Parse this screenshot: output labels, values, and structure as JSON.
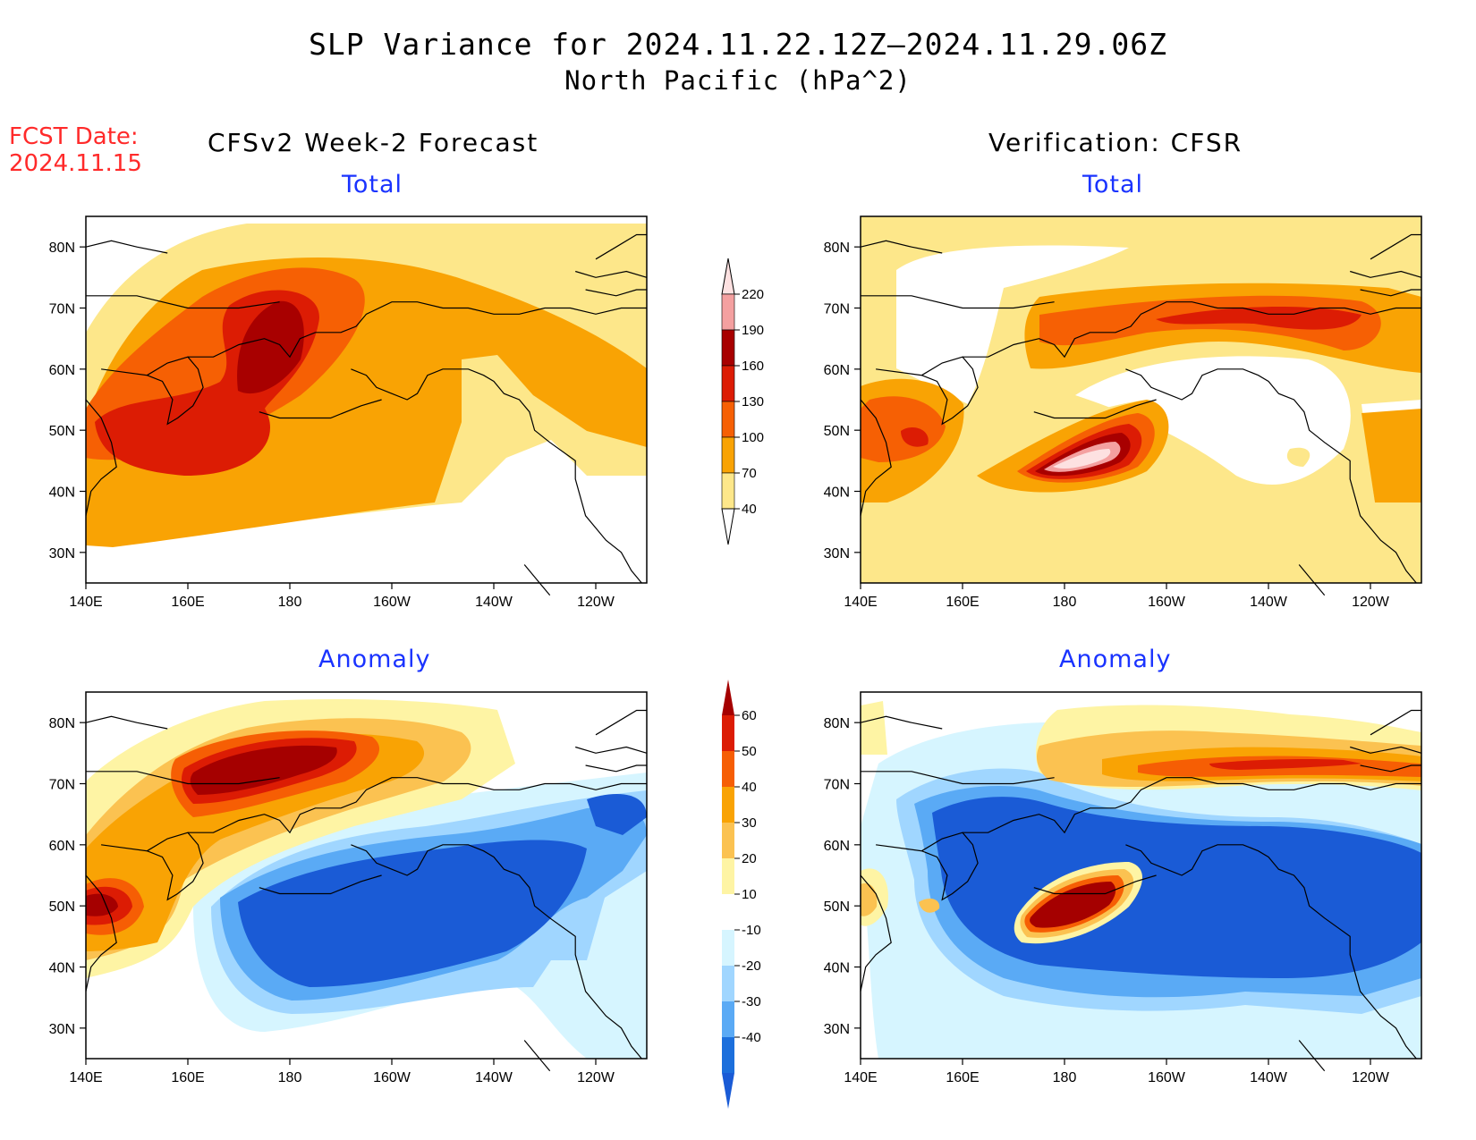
{
  "title": "SLP Variance for 2024.11.22.12Z—2024.11.29.06Z",
  "subtitle": "North Pacific (hPa^2)",
  "fcst_label": "FCST Date:",
  "fcst_date": "2024.11.15",
  "left_header": "CFSv2 Week-2 Forecast",
  "right_header": "Verification: CFSR",
  "panels": {
    "forecast_total": {
      "label": "Total"
    },
    "verification_total": {
      "label": "Total"
    },
    "forecast_anomaly": {
      "label": "Anomaly"
    },
    "verification_anomaly": {
      "label": "Anomaly"
    }
  },
  "axes": {
    "lon_ticks": [
      "140E",
      "160E",
      "180",
      "160W",
      "140W",
      "120W"
    ],
    "lat_ticks": [
      "80N",
      "70N",
      "60N",
      "50N",
      "40N",
      "30N"
    ],
    "lon_range": [
      140,
      250
    ],
    "lat_range": [
      25,
      85
    ]
  },
  "colorbars": {
    "total": {
      "levels": [
        "40",
        "70",
        "100",
        "130",
        "160",
        "190",
        "220"
      ],
      "colors": [
        "#fde78a",
        "#f9a304",
        "#f66004",
        "#dc1c04",
        "#a80000",
        "#f4a0a0",
        "#fde1e1"
      ]
    },
    "anomaly": {
      "levels": [
        "60",
        "50",
        "40",
        "30",
        "20",
        "10",
        "-10",
        "-20",
        "-30",
        "-40"
      ],
      "colors": [
        "#a50000",
        "#dc1c04",
        "#f65e04",
        "#f9a304",
        "#fbc251",
        "#fef4a4",
        "#ffffff",
        "#d6f5ff",
        "#a0d6ff",
        "#5aaaf5",
        "#1c6fdc",
        "#1a5bd6"
      ]
    }
  }
}
